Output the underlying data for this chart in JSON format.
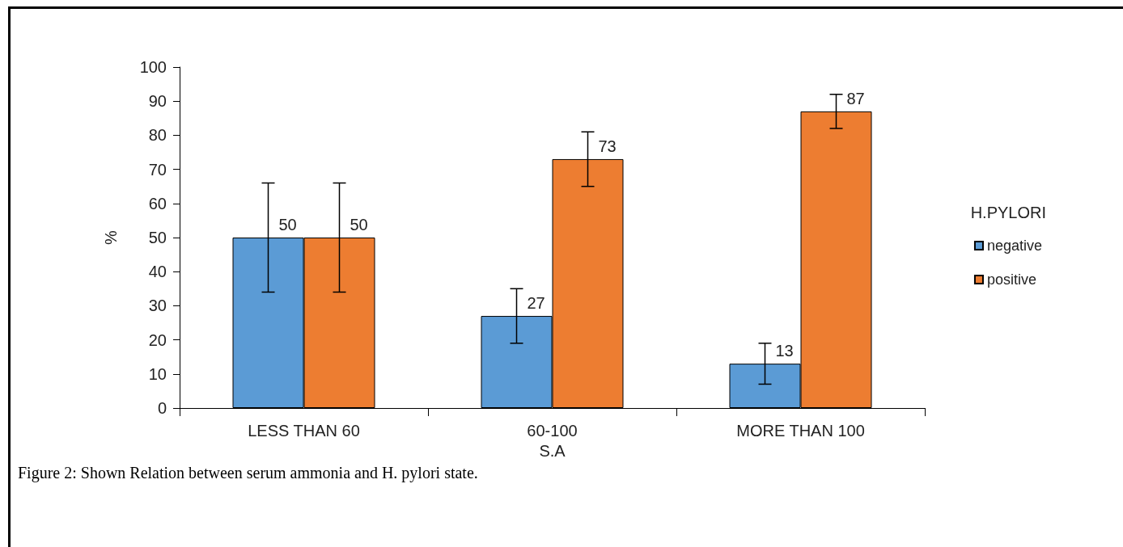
{
  "chart_data": {
    "type": "bar",
    "xlabel": "S.A",
    "ylabel": "%",
    "legend_title": "H.PYLORI",
    "categories": [
      "LESS THAN 60",
      "60-100",
      "MORE THAN 100"
    ],
    "series": [
      {
        "name": "negative",
        "color": "#5b9bd5",
        "values": [
          50,
          27,
          13
        ],
        "errors": [
          16,
          8,
          6
        ]
      },
      {
        "name": "positive",
        "color": "#ed7d31",
        "values": [
          50,
          73,
          87
        ],
        "errors": [
          16,
          8,
          5
        ]
      }
    ],
    "ylim": [
      0,
      100
    ],
    "yticks": [
      0,
      10,
      20,
      30,
      40,
      50,
      60,
      70,
      80,
      90,
      100
    ],
    "grid": false,
    "legend": "right",
    "data_labels": true,
    "annotations": [
      "Figure 2: Shown Relation between serum ammonia and H. pylori state."
    ]
  }
}
